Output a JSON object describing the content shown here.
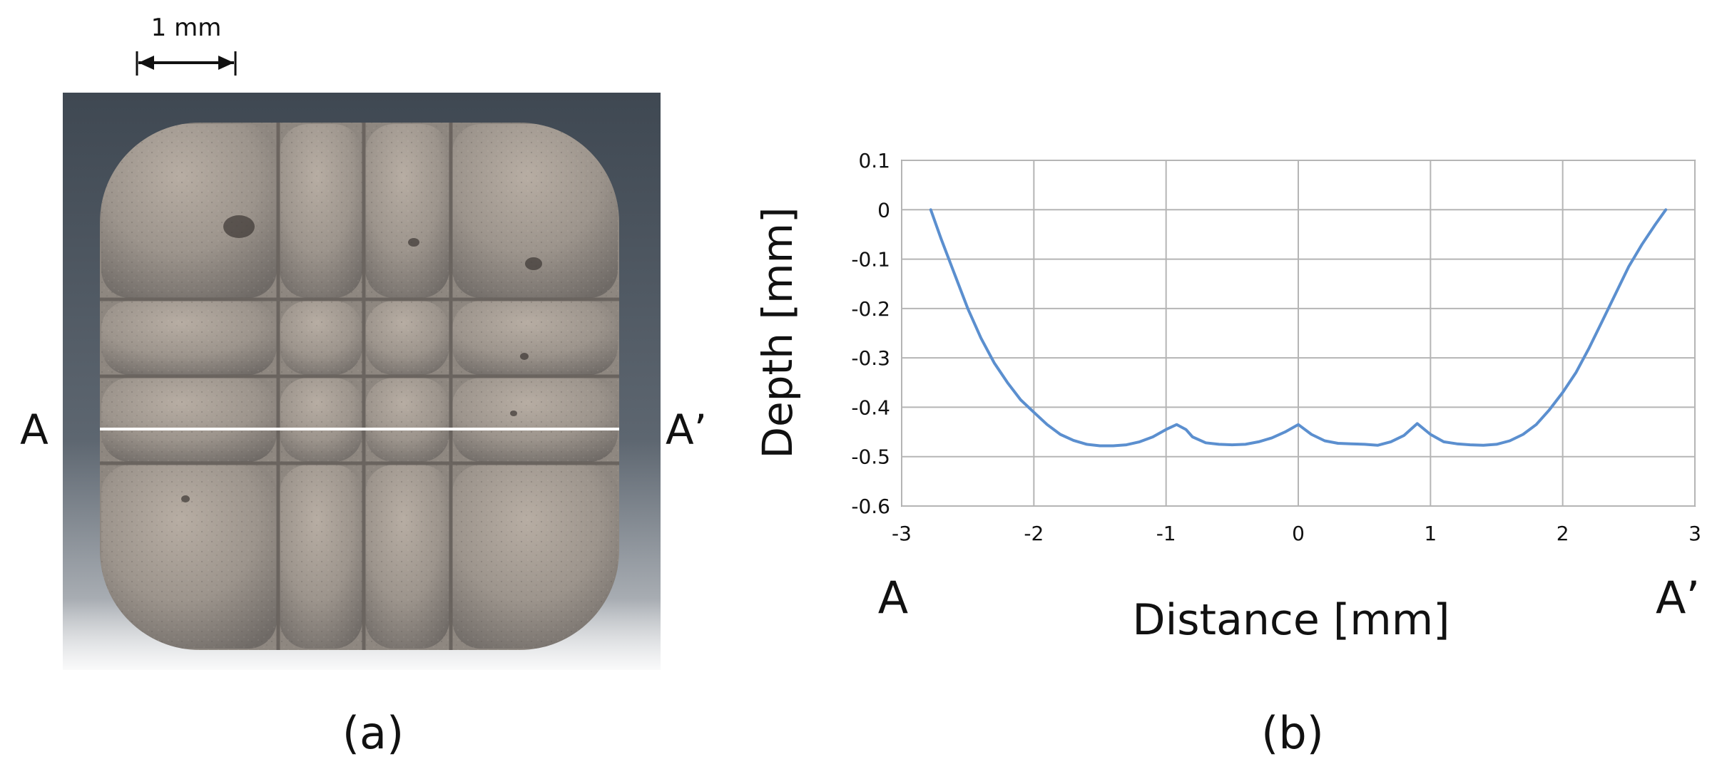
{
  "panel_a": {
    "scale_bar_label": "1 mm",
    "section_start_label": "A",
    "section_end_label": "A’",
    "caption": "(a)"
  },
  "panel_b": {
    "caption": "(b)",
    "start_label": "A",
    "end_label": "A’"
  },
  "chart_data": {
    "type": "line",
    "xlabel": "Distance [mm]",
    "ylabel": "Depth  [mm]",
    "xlim": [
      -3,
      3
    ],
    "ylim": [
      -0.6,
      0.1
    ],
    "x_ticks": [
      "-3",
      "-2",
      "-1",
      "0",
      "1",
      "2",
      "3"
    ],
    "y_ticks": [
      "0.1",
      "0",
      "-0.1",
      "-0.2",
      "-0.3",
      "-0.4",
      "-0.5",
      "-0.6"
    ],
    "grid": true,
    "line_color": "#5b8fcf",
    "series": [
      {
        "x": [
          -2.78,
          -2.7,
          -2.6,
          -2.5,
          -2.4,
          -2.3,
          -2.2,
          -2.1,
          -2.0,
          -1.9,
          -1.8,
          -1.7,
          -1.6,
          -1.5,
          -1.4,
          -1.3,
          -1.2,
          -1.1,
          -1.0,
          -0.92,
          -0.85,
          -0.8,
          -0.7,
          -0.6,
          -0.5,
          -0.4,
          -0.3,
          -0.2,
          -0.1,
          0.0,
          0.1,
          0.2,
          0.3,
          0.4,
          0.5,
          0.6,
          0.7,
          0.8,
          0.9,
          1.0,
          1.1,
          1.2,
          1.3,
          1.4,
          1.5,
          1.6,
          1.7,
          1.8,
          1.9,
          2.0,
          2.1,
          2.2,
          2.3,
          2.4,
          2.5,
          2.6,
          2.7,
          2.78
        ],
        "y": [
          0.0,
          -0.06,
          -0.13,
          -0.2,
          -0.26,
          -0.31,
          -0.35,
          -0.385,
          -0.41,
          -0.435,
          -0.455,
          -0.467,
          -0.475,
          -0.478,
          -0.478,
          -0.476,
          -0.47,
          -0.46,
          -0.445,
          -0.435,
          -0.445,
          -0.46,
          -0.472,
          -0.475,
          -0.476,
          -0.475,
          -0.47,
          -0.462,
          -0.45,
          -0.435,
          -0.455,
          -0.468,
          -0.473,
          -0.474,
          -0.475,
          -0.477,
          -0.47,
          -0.457,
          -0.433,
          -0.455,
          -0.47,
          -0.474,
          -0.476,
          -0.477,
          -0.475,
          -0.468,
          -0.455,
          -0.435,
          -0.405,
          -0.37,
          -0.33,
          -0.28,
          -0.225,
          -0.17,
          -0.115,
          -0.07,
          -0.03,
          0.0
        ]
      }
    ]
  }
}
